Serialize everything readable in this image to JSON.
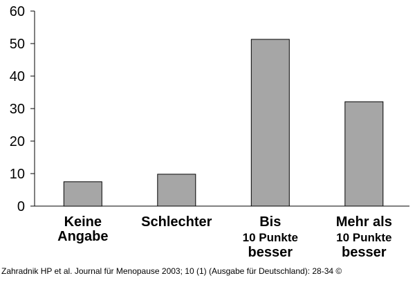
{
  "chart_data": {
    "type": "bar",
    "categories": [
      [
        "Keine",
        "Angabe"
      ],
      [
        "Schlechter"
      ],
      [
        "Bis",
        "10 Punkte",
        "besser"
      ],
      [
        "Mehr als",
        "10 Punkte",
        "besser"
      ]
    ],
    "values": [
      7.5,
      9.8,
      51.3,
      32.1
    ],
    "title": "",
    "xlabel": "",
    "ylabel": "",
    "ylim": [
      0,
      60
    ],
    "yticks": [
      0,
      10,
      20,
      30,
      40,
      50,
      60
    ],
    "grid": false,
    "bar_color": "#a6a6a6",
    "bar_stroke": "#000000"
  },
  "source_note": "Zahradnik HP et al. Journal für Menopause 2003; 10 (1) (Ausgabe für Deutschland): 28-34 ©"
}
